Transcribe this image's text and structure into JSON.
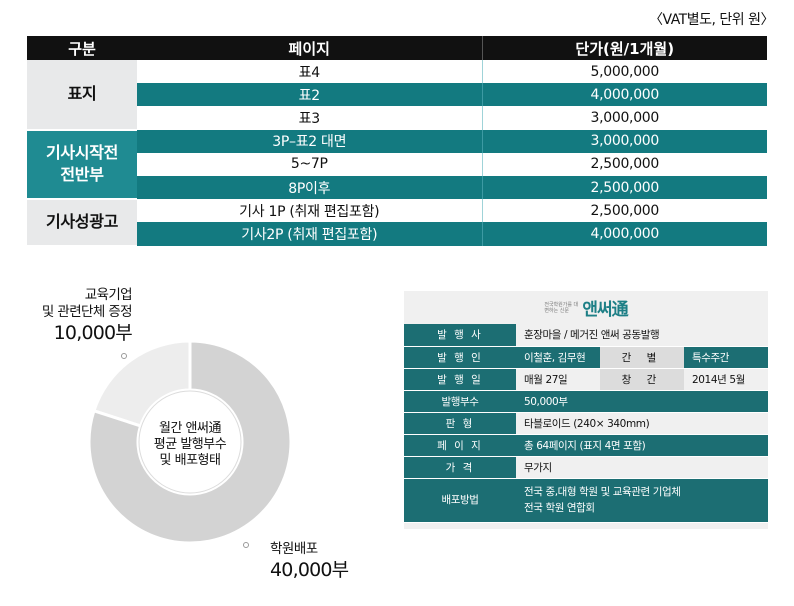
{
  "vat_note": "〈VAT별도, 단위 원〉",
  "price_table": {
    "headers": [
      "구분",
      "페이지",
      "단가(원/1개월)"
    ],
    "groups": [
      {
        "name": "표지",
        "rows": [
          {
            "page": "표4",
            "price": "5,000,000"
          },
          {
            "page": "표2",
            "price": "4,000,000"
          },
          {
            "page": "표3",
            "price": "3,000,000"
          }
        ]
      },
      {
        "name": "기사시작전\n전반부",
        "rows": [
          {
            "page": "3P–표2  대면",
            "price": "3,000,000"
          },
          {
            "page": "5~7P",
            "price": "2,500,000"
          },
          {
            "page": "8P이후",
            "price": "2,500,000"
          }
        ]
      },
      {
        "name": "기사성광고",
        "rows": [
          {
            "page": "기사 1P (취재 편집포함)",
            "price": "2,500,000"
          },
          {
            "page": "기사2P (취재  편집포함)",
            "price": "4,000,000"
          }
        ]
      }
    ]
  },
  "donut": {
    "center_label": "월간 앤써通\n평균 발행부수\n및 배포형태",
    "segments": [
      {
        "label": "교육기업\n및 관련단체 증정",
        "value_text": "10,000부",
        "value": 10000,
        "color": "#ededed"
      },
      {
        "label": "학원배포",
        "value_text": "40,000부",
        "value": 40000,
        "color": "#d3d3d3"
      }
    ]
  },
  "info_card": {
    "logo_text": "앤써通",
    "logo_small": "전국학원가를 대변하는 신문",
    "rows": {
      "publisher_key": "발 행 사",
      "publisher": "훈장마을 / 메거진 앤써 공동발행",
      "issuer_key": "발 행 인",
      "issuer": "이철훈, 김무현",
      "type_key": "간  별",
      "type": "특수주간",
      "date_key": "발 행 일",
      "date": "매월 27일",
      "founded_key": "창  간",
      "founded": "2014년 5월",
      "copies_key": "발행부수",
      "copies": "50,000부",
      "format_key": "판  형",
      "format": "타블로이드 (240× 340mm)",
      "pages_key": "페 이 지",
      "pages": "총 64페이지 (표지 4면 포함)",
      "price_key": "가  격",
      "price": "무가지",
      "distribution_key": "배포방법",
      "distribution_1": "전국 중,대형 학원 및 교육관련 기업체",
      "distribution_2": "전국 학원 연합회"
    }
  }
}
